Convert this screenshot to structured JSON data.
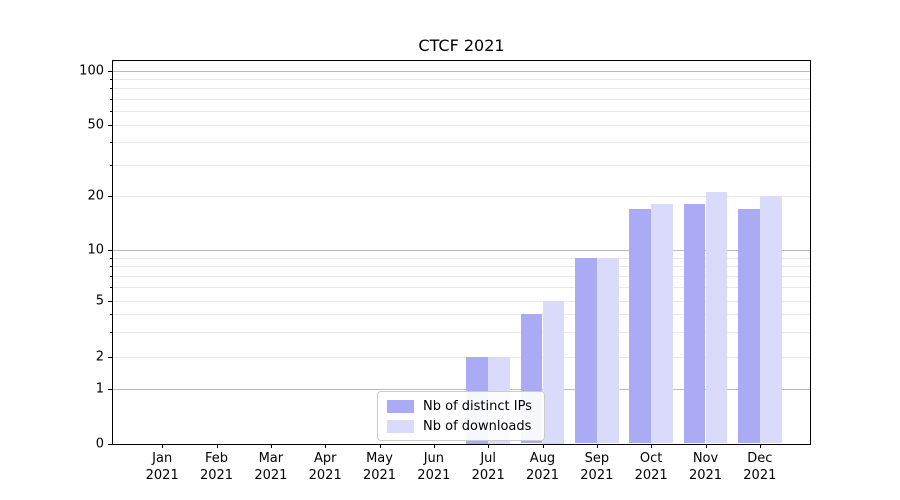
{
  "chart_data": {
    "type": "bar",
    "title": "CTCF 2021",
    "months": [
      "Jan",
      "Feb",
      "Mar",
      "Apr",
      "May",
      "Jun",
      "Jul",
      "Aug",
      "Sep",
      "Oct",
      "Nov",
      "Dec"
    ],
    "year": "2021",
    "categories": [
      "Jan 2021",
      "Feb 2021",
      "Mar 2021",
      "Apr 2021",
      "May 2021",
      "Jun 2021",
      "Jul 2021",
      "Aug 2021",
      "Sep 2021",
      "Oct 2021",
      "Nov 2021",
      "Dec 2021"
    ],
    "series": [
      {
        "name": "Nb of distinct IPs",
        "color": "#aaaaf5",
        "values": [
          0,
          0,
          0,
          0,
          0,
          0,
          2,
          4,
          9,
          17,
          18,
          17
        ]
      },
      {
        "name": "Nb of downloads",
        "color": "#dadafa",
        "values": [
          0,
          0,
          0,
          0,
          0,
          0,
          2,
          5,
          9,
          18,
          21,
          20
        ]
      }
    ],
    "yscale": "symlog",
    "ytick_labels": [
      "0",
      "1",
      "2",
      "5",
      "10",
      "20",
      "50",
      "100"
    ],
    "ytick_values": [
      0,
      1,
      2,
      5,
      10,
      20,
      50,
      100
    ],
    "minor_ytick_values": [
      2,
      3,
      4,
      5,
      6,
      7,
      8,
      9,
      20,
      30,
      40,
      50,
      60,
      70,
      80,
      90
    ],
    "major_grid_values": [
      1,
      10,
      100
    ],
    "ylim": [
      0,
      114
    ],
    "xlabel": "",
    "ylabel": "",
    "grid": "horizontal",
    "legend_position": "lower center"
  }
}
